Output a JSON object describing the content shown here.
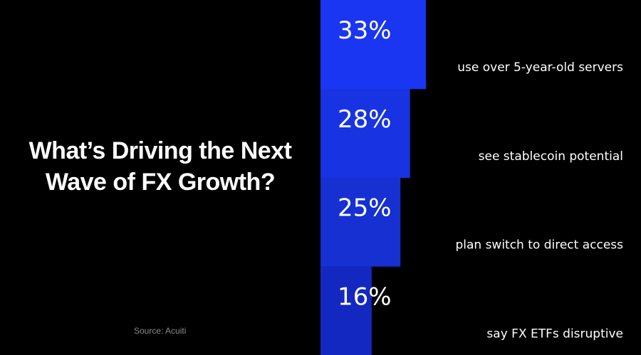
{
  "title": "What’s Driving the Next Wave of FX Growth?",
  "source": "Source: Acuiti",
  "chart_data": {
    "type": "bar",
    "orientation": "horizontal",
    "title": "What’s Driving the Next Wave of FX Growth?",
    "categories": [
      "use over 5-year-old servers",
      "see stablecoin potential",
      "plan switch to direct access",
      "say FX ETFs disruptive"
    ],
    "values": [
      33,
      28,
      25,
      16
    ],
    "data_labels": [
      "33%",
      "28%",
      "25%",
      "16%"
    ],
    "unit": "%",
    "colors": [
      "#1a36f2",
      "#1833e2",
      "#1630d2",
      "#1328c0"
    ],
    "grid": false,
    "legend": "none"
  }
}
